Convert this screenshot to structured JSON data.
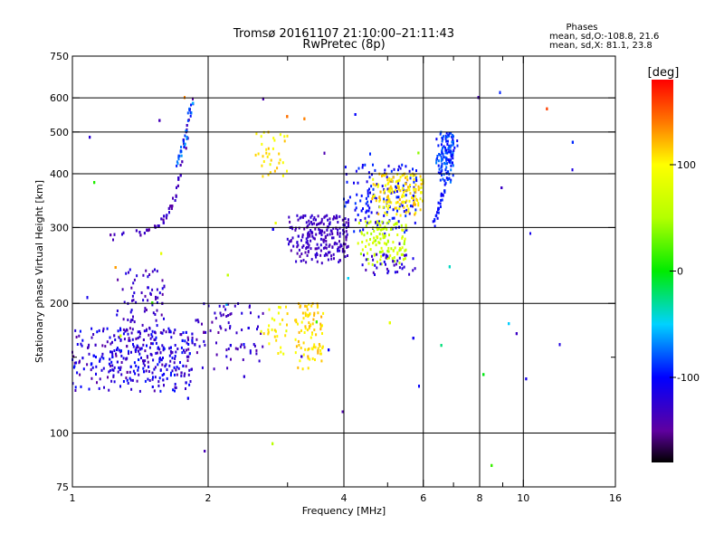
{
  "chart_data": {
    "type": "scatter",
    "title": "Tromsø 20161107 21:10:00–21:11:43",
    "subtitle": "RwPretec (8p)",
    "xlabel": "Frequency [MHz]",
    "ylabel": "Stationary phase Virtual Height [km]",
    "x_scale": "log",
    "y_scale": "log",
    "xlim": [
      1,
      16
    ],
    "ylim": [
      75,
      750
    ],
    "x_ticks": [
      1,
      2,
      4,
      6,
      8,
      10,
      16
    ],
    "x_tick_labels": [
      "1",
      "2",
      "4",
      "6",
      "8",
      "10",
      "16"
    ],
    "x_minor_ticks": [
      3,
      5,
      7,
      9
    ],
    "y_ticks": [
      75,
      100,
      200,
      300,
      400,
      500,
      600,
      750
    ],
    "y_tick_labels": [
      "75",
      "100",
      "200",
      "300",
      "400",
      "500",
      "600",
      "750"
    ],
    "y_minor_ticks": [
      150
    ],
    "grid": true,
    "stats": {
      "heading": "Phases",
      "line1": "mean, sd,O:-108.8, 21.6",
      "line2": "mean, sd,X:  81.1, 23.8"
    },
    "colorbar": {
      "label": "[deg]",
      "range": [
        -180,
        180
      ],
      "ticks": [
        100,
        0,
        -100
      ],
      "tick_labels": [
        "100",
        "0",
        "-100"
      ],
      "position": "right"
    },
    "clusters": [
      {
        "f": [
          1.0,
          1.85
        ],
        "h": [
          125,
          175
        ],
        "n": 380,
        "phase": [
          -150,
          -95
        ]
      },
      {
        "f": [
          1.25,
          1.6
        ],
        "h": [
          160,
          240
        ],
        "n": 80,
        "phase": [
          -150,
          -110
        ]
      },
      {
        "f": [
          1.85,
          2.65
        ],
        "h": [
          140,
          200
        ],
        "n": 70,
        "phase": [
          -150,
          -115
        ]
      },
      {
        "f": [
          3.0,
          4.1
        ],
        "h": [
          248,
          320
        ],
        "n": 230,
        "phase": [
          -145,
          -120
        ]
      },
      {
        "f": [
          4.0,
          5.8
        ],
        "h": [
          290,
          420
        ],
        "n": 150,
        "phase": [
          -120,
          -85
        ]
      },
      {
        "f": [
          4.3,
          5.5
        ],
        "h": [
          245,
          310
        ],
        "n": 120,
        "phase": [
          40,
          85
        ]
      },
      {
        "f": [
          4.6,
          6.0
        ],
        "h": [
          320,
          400
        ],
        "n": 150,
        "phase": [
          85,
          125
        ]
      },
      {
        "f": [
          4.4,
          5.8
        ],
        "h": [
          232,
          260
        ],
        "n": 40,
        "phase": [
          -140,
          -110
        ]
      },
      {
        "f": [
          6.4,
          7.0
        ],
        "h": [
          380,
          500
        ],
        "n": 110,
        "phase": [
          -105,
          -70
        ]
      },
      {
        "f": [
          3.1,
          3.6
        ],
        "h": [
          140,
          200
        ],
        "n": 90,
        "phase": [
          95,
          125
        ]
      },
      {
        "f": [
          2.55,
          3.0
        ],
        "h": [
          390,
          500
        ],
        "n": 35,
        "phase": [
          85,
          120
        ]
      },
      {
        "f": [
          2.6,
          3.0
        ],
        "h": [
          150,
          200
        ],
        "n": 30,
        "phase": [
          80,
          115
        ]
      }
    ],
    "traces": [
      {
        "f": [
          1.18,
          1.4,
          1.55,
          1.65,
          1.72,
          1.78,
          1.84
        ],
        "h": [
          285,
          290,
          300,
          330,
          380,
          470,
          590
        ],
        "n": 130,
        "phase": [
          -150,
          -120
        ]
      },
      {
        "f": [
          1.7,
          1.77,
          1.84
        ],
        "h": [
          410,
          470,
          590
        ],
        "n": 35,
        "phase": [
          -100,
          -60
        ]
      },
      {
        "f": [
          6.3,
          6.5,
          6.7,
          7.1
        ],
        "h": [
          305,
          330,
          380,
          470
        ],
        "n": 40,
        "phase": [
          -110,
          -90
        ]
      }
    ],
    "scattered": {
      "n": 220,
      "f": [
        1.0,
        13.0
      ],
      "h": [
        80,
        650
      ],
      "phase": [
        -160,
        160
      ]
    }
  }
}
